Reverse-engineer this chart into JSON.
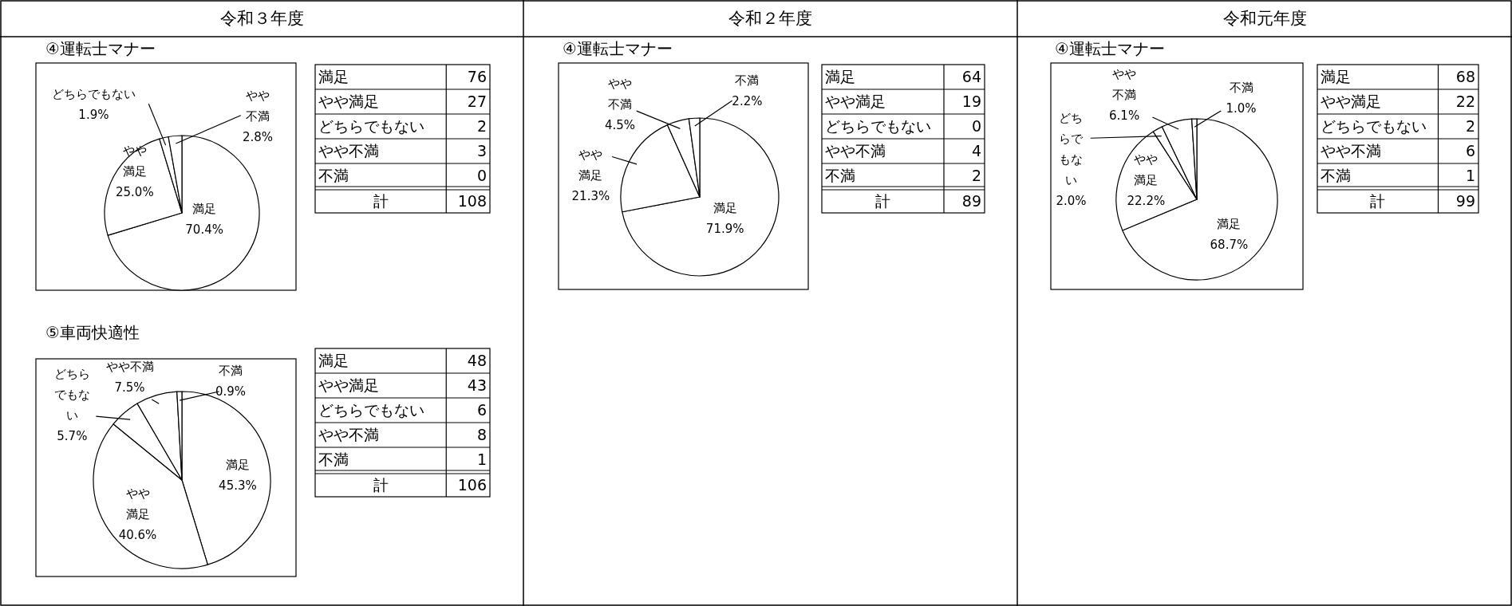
{
  "chart_data": [
    {
      "type": "pie",
      "subtitle": "令和３年度",
      "title": "④運転士マナー",
      "categories": [
        "満足",
        "やや満足",
        "どちらでもない",
        "やや不満"
      ],
      "values": [
        70.4,
        25.0,
        1.9,
        2.8
      ],
      "colors": [
        "#ffffff",
        "#ffffff",
        "#ffffff",
        "#ffffff"
      ],
      "value_labels": [
        "70.4%",
        "25.0%",
        "1.9%",
        "2.8%"
      ]
    },
    {
      "type": "other",
      "categories": [
        "満足",
        "やや満足",
        "どちらでもない",
        "やや不満",
        "不満"
      ],
      "values": [
        76,
        27,
        2,
        3,
        0
      ],
      "data_labels": true,
      "annotations": [
        "計",
        "108"
      ]
    },
    {
      "type": "pie",
      "title": "⑤車両快適性",
      "categories": [
        "満足",
        "やや満足",
        "どちらでもない",
        "やや不満",
        "不満"
      ],
      "values": [
        45.3,
        40.6,
        5.7,
        7.5,
        0.9
      ],
      "colors": [
        "#ffffff",
        "#ffffff",
        "#ffffff",
        "#ffffff",
        "#ffffff"
      ],
      "value_labels": [
        "45.3%",
        "40.6%",
        "5.7%",
        "7.5%",
        "0.9%"
      ]
    },
    {
      "type": "other",
      "categories": [
        "満足",
        "やや満足",
        "どちらでもない",
        "やや不満",
        "不満"
      ],
      "values": [
        48,
        43,
        6,
        8,
        1
      ],
      "data_labels": true,
      "annotations": [
        "計",
        "106"
      ]
    },
    {
      "type": "pie",
      "subtitle": "令和２年度",
      "title": "④運転士マナー",
      "categories": [
        "満足",
        "やや満足",
        "やや不満",
        "不満"
      ],
      "values": [
        71.9,
        21.3,
        4.5,
        2.2
      ],
      "colors": [
        "#ffffff",
        "#ffffff",
        "#ffffff",
        "#ffffff"
      ],
      "value_labels": [
        "71.9%",
        "21.3%",
        "4.5%",
        "2.2%"
      ]
    },
    {
      "type": "other",
      "categories": [
        "満足",
        "やや満足",
        "どちらでもない",
        "やや不満",
        "不満"
      ],
      "values": [
        64,
        19,
        0,
        4,
        2
      ],
      "data_labels": true,
      "annotations": [
        "計",
        "89"
      ]
    },
    {
      "type": "pie",
      "subtitle": "令和元年度",
      "title": "④運転士マナー",
      "categories": [
        "満足",
        "やや満足",
        "どちらでもない",
        "やや不満",
        "不満"
      ],
      "values": [
        68.7,
        22.2,
        2.0,
        6.1,
        1.0
      ],
      "colors": [
        "#ffffff",
        "#ffffff",
        "#ffffff",
        "#ffffff",
        "#ffffff"
      ],
      "value_labels": [
        "68.7%",
        "22.2%",
        "2.0%",
        "6.1%",
        "1.0%"
      ]
    },
    {
      "type": "other",
      "categories": [
        "満足",
        "やや満足",
        "どちらでもない",
        "やや不満",
        "不満"
      ],
      "values": [
        68,
        22,
        2,
        6,
        1
      ],
      "data_labels": true,
      "annotations": [
        "計",
        "99"
      ]
    }
  ]
}
